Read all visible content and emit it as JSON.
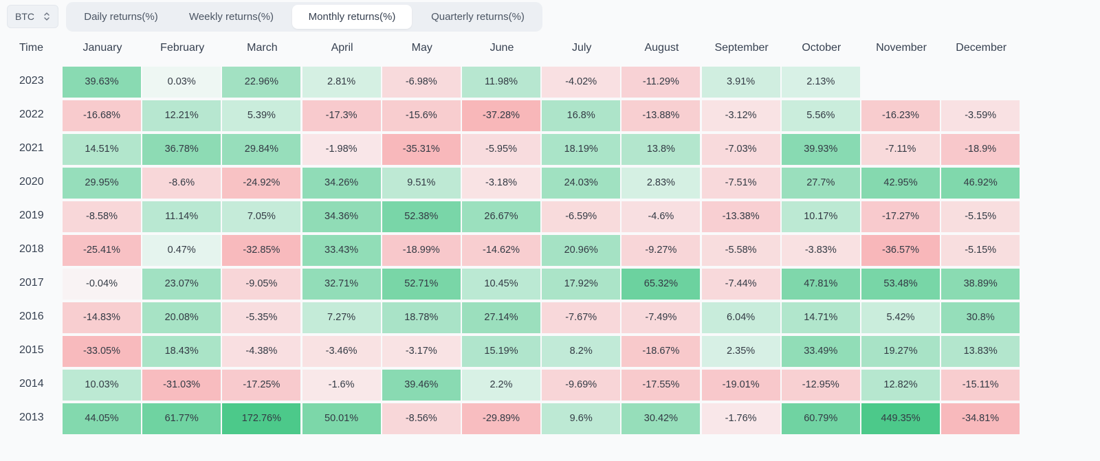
{
  "asset_selector": {
    "value": "BTC"
  },
  "tabs": [
    {
      "label": "Daily returns(%)",
      "active": false
    },
    {
      "label": "Weekly returns(%)",
      "active": false
    },
    {
      "label": "Monthly returns(%)",
      "active": true
    },
    {
      "label": "Quarterly returns(%)",
      "active": false
    }
  ],
  "chart_data": {
    "type": "heatmap",
    "row_header": "Time",
    "columns": [
      "January",
      "February",
      "March",
      "April",
      "May",
      "June",
      "July",
      "August",
      "September",
      "October",
      "November",
      "December"
    ],
    "rows": [
      {
        "year": "2023",
        "values": [
          "39.63%",
          "0.03%",
          "22.96%",
          "2.81%",
          "-6.98%",
          "11.98%",
          "-4.02%",
          "-11.29%",
          "3.91%",
          "2.13%",
          null,
          null
        ]
      },
      {
        "year": "2022",
        "values": [
          "-16.68%",
          "12.21%",
          "5.39%",
          "-17.3%",
          "-15.6%",
          "-37.28%",
          "16.8%",
          "-13.88%",
          "-3.12%",
          "5.56%",
          "-16.23%",
          "-3.59%"
        ]
      },
      {
        "year": "2021",
        "values": [
          "14.51%",
          "36.78%",
          "29.84%",
          "-1.98%",
          "-35.31%",
          "-5.95%",
          "18.19%",
          "13.8%",
          "-7.03%",
          "39.93%",
          "-7.11%",
          "-18.9%"
        ]
      },
      {
        "year": "2020",
        "values": [
          "29.95%",
          "-8.6%",
          "-24.92%",
          "34.26%",
          "9.51%",
          "-3.18%",
          "24.03%",
          "2.83%",
          "-7.51%",
          "27.7%",
          "42.95%",
          "46.92%"
        ]
      },
      {
        "year": "2019",
        "values": [
          "-8.58%",
          "11.14%",
          "7.05%",
          "34.36%",
          "52.38%",
          "26.67%",
          "-6.59%",
          "-4.6%",
          "-13.38%",
          "10.17%",
          "-17.27%",
          "-5.15%"
        ]
      },
      {
        "year": "2018",
        "values": [
          "-25.41%",
          "0.47%",
          "-32.85%",
          "33.43%",
          "-18.99%",
          "-14.62%",
          "20.96%",
          "-9.27%",
          "-5.58%",
          "-3.83%",
          "-36.57%",
          "-5.15%"
        ]
      },
      {
        "year": "2017",
        "values": [
          "-0.04%",
          "23.07%",
          "-9.05%",
          "32.71%",
          "52.71%",
          "10.45%",
          "17.92%",
          "65.32%",
          "-7.44%",
          "47.81%",
          "53.48%",
          "38.89%"
        ]
      },
      {
        "year": "2016",
        "values": [
          "-14.83%",
          "20.08%",
          "-5.35%",
          "7.27%",
          "18.78%",
          "27.14%",
          "-7.67%",
          "-7.49%",
          "6.04%",
          "14.71%",
          "5.42%",
          "30.8%"
        ]
      },
      {
        "year": "2015",
        "values": [
          "-33.05%",
          "18.43%",
          "-4.38%",
          "-3.46%",
          "-3.17%",
          "15.19%",
          "8.2%",
          "-18.67%",
          "2.35%",
          "33.49%",
          "19.27%",
          "13.83%"
        ]
      },
      {
        "year": "2014",
        "values": [
          "10.03%",
          "-31.03%",
          "-17.25%",
          "-1.6%",
          "39.46%",
          "2.2%",
          "-9.69%",
          "-17.55%",
          "-19.01%",
          "-12.95%",
          "12.82%",
          "-15.11%"
        ]
      },
      {
        "year": "2013",
        "values": [
          "44.05%",
          "61.77%",
          "172.76%",
          "50.01%",
          "-8.56%",
          "-29.89%",
          "9.6%",
          "30.42%",
          "-1.76%",
          "60.79%",
          "449.35%",
          "-34.81%"
        ]
      }
    ],
    "colors": {
      "positive": "#4cc98a",
      "negative": "#f78f93",
      "neutral": "#f9fafb"
    }
  }
}
